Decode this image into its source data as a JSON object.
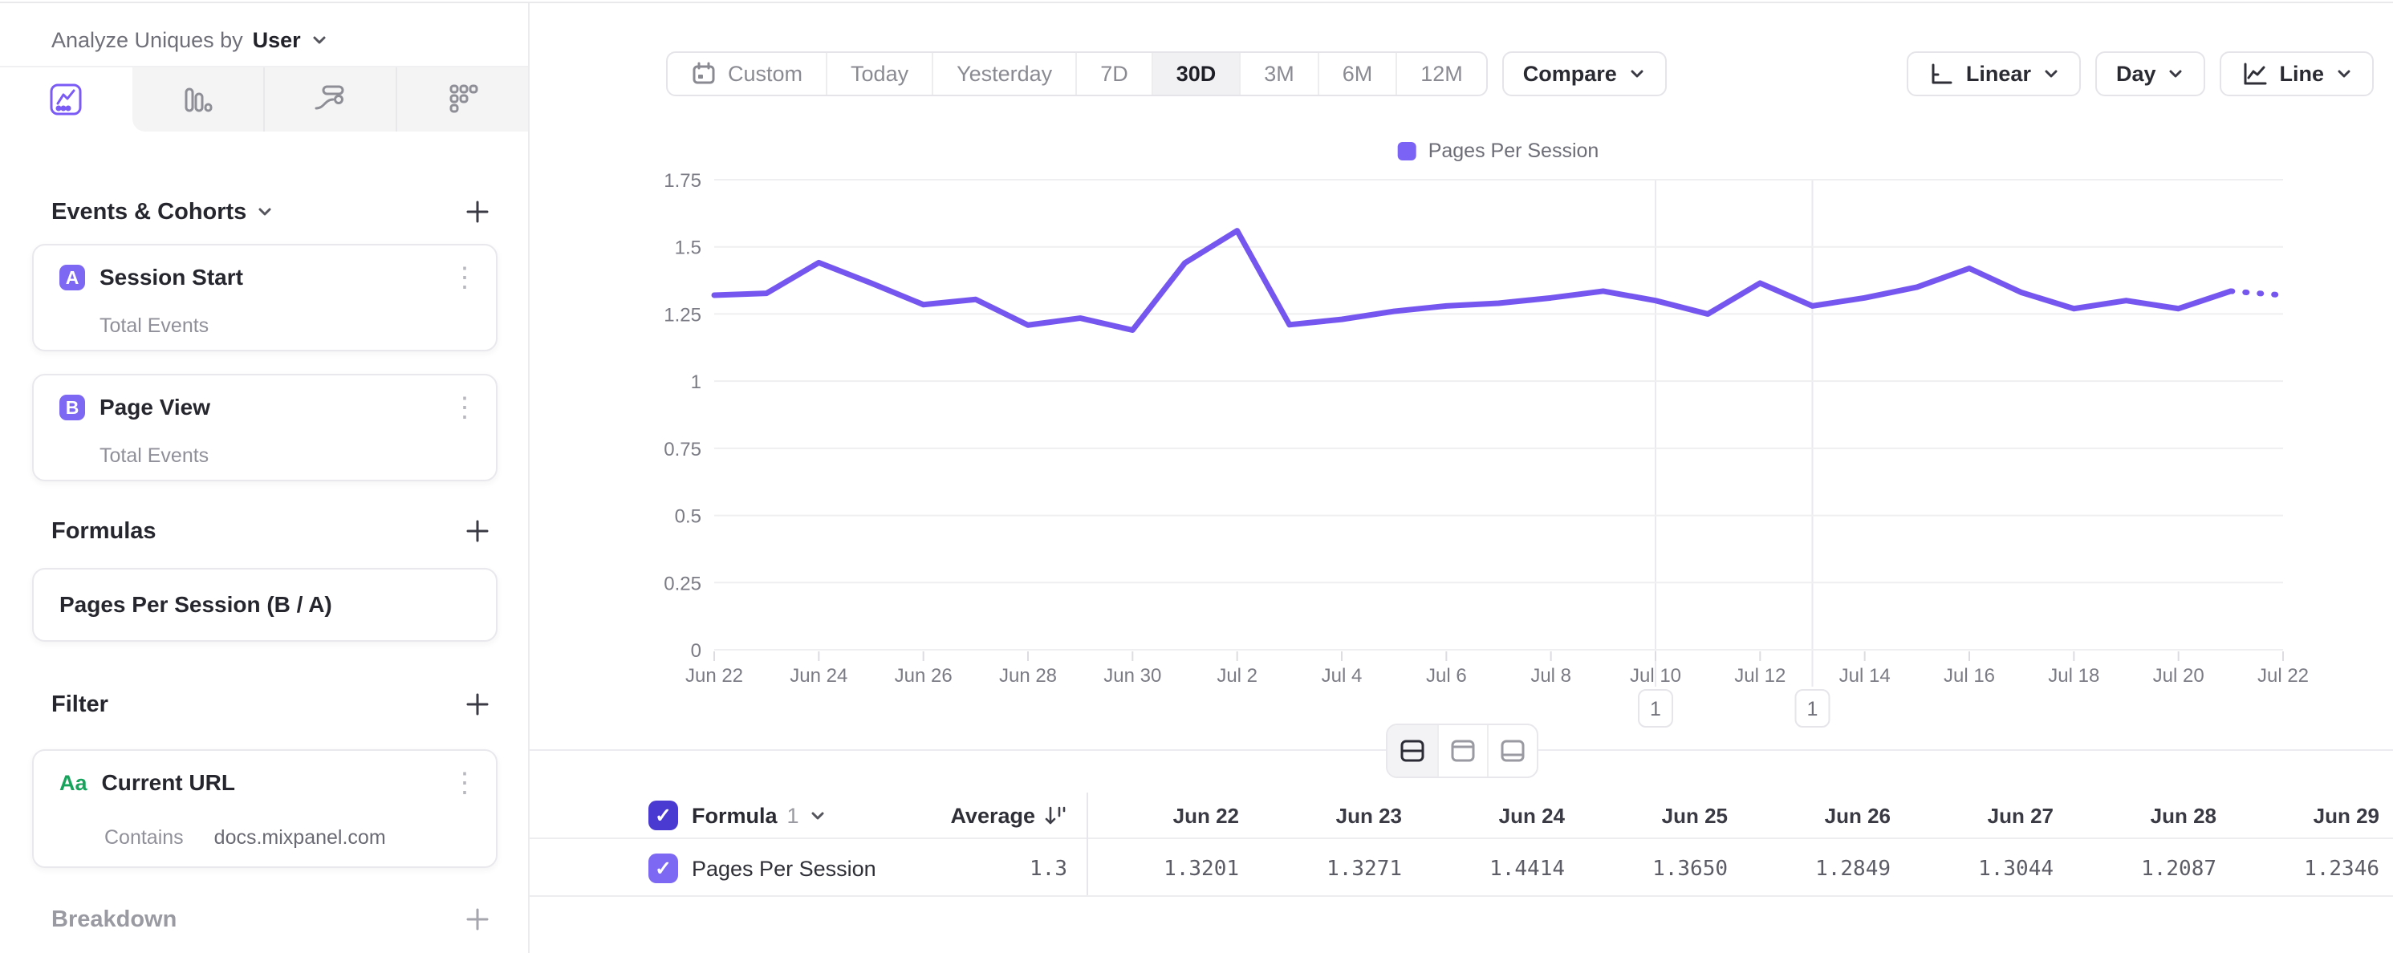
{
  "colors": {
    "accent_purple": "#7b5bf5",
    "line_purple": "#7557f0",
    "legend_swatch": "#7b63f5",
    "header_checkbox": "#4b3ad2",
    "row_checkbox": "#7c68f2",
    "filter_green": "#18a35d"
  },
  "sidebar": {
    "analyze_label": "Analyze Uniques by",
    "analyze_value": "User",
    "tabs": [
      "insights",
      "bar",
      "flow",
      "retention"
    ],
    "events_section": {
      "title": "Events & Cohorts",
      "items": [
        {
          "badge": "A",
          "title": "Session Start",
          "subtitle": "Total Events"
        },
        {
          "badge": "B",
          "title": "Page View",
          "subtitle": "Total Events"
        }
      ]
    },
    "formulas_section": {
      "title": "Formulas",
      "items": [
        {
          "title": "Pages Per Session (B / A)"
        }
      ]
    },
    "filter_section": {
      "title": "Filter",
      "items": [
        {
          "icon_label": "Aa",
          "title": "Current URL",
          "operator": "Contains",
          "value": "docs.mixpanel.com"
        }
      ]
    },
    "breakdown_section": {
      "title": "Breakdown"
    }
  },
  "toolbar": {
    "ranges": [
      "Custom",
      "Today",
      "Yesterday",
      "7D",
      "30D",
      "3M",
      "6M",
      "12M"
    ],
    "active_range": "30D",
    "compare_label": "Compare",
    "scale_label": "Linear",
    "interval_label": "Day",
    "chart_type_label": "Line"
  },
  "legend": {
    "label": "Pages Per Session"
  },
  "annotations": [
    {
      "label": "1",
      "x_index": 18
    },
    {
      "label": "1",
      "x_index": 21
    }
  ],
  "chart_data": {
    "type": "line",
    "title": "Pages Per Session over time",
    "x": [
      "Jun 22",
      "Jun 23",
      "Jun 24",
      "Jun 25",
      "Jun 26",
      "Jun 27",
      "Jun 28",
      "Jun 29",
      "Jun 30",
      "Jul 1",
      "Jul 2",
      "Jul 3",
      "Jul 4",
      "Jul 5",
      "Jul 6",
      "Jul 7",
      "Jul 8",
      "Jul 9",
      "Jul 10",
      "Jul 11",
      "Jul 12",
      "Jul 13",
      "Jul 14",
      "Jul 15",
      "Jul 16",
      "Jul 17",
      "Jul 18",
      "Jul 19",
      "Jul 20",
      "Jul 21",
      "Jul 22"
    ],
    "x_tick_every": 2,
    "ylim": [
      0,
      1.75
    ],
    "y_tick_step": 0.25,
    "grid": "horizontal",
    "legend_position": "top-center",
    "series": [
      {
        "name": "Pages Per Session",
        "color": "#7557f0",
        "dashed_last_segment": true,
        "values": [
          1.3201,
          1.3271,
          1.4414,
          1.365,
          1.2849,
          1.3044,
          1.2087,
          1.2346,
          1.19,
          1.44,
          1.56,
          1.21,
          1.23,
          1.26,
          1.28,
          1.29,
          1.31,
          1.335,
          1.3,
          1.25,
          1.365,
          1.28,
          1.31,
          1.35,
          1.42,
          1.33,
          1.27,
          1.3,
          1.27,
          1.335,
          1.32
        ]
      }
    ]
  },
  "table": {
    "header": {
      "formula_label": "Formula",
      "formula_number": "1",
      "average_label": "Average",
      "date_columns": [
        "Jun 22",
        "Jun 23",
        "Jun 24",
        "Jun 25",
        "Jun 26",
        "Jun 27",
        "Jun 28",
        "Jun 29"
      ]
    },
    "rows": [
      {
        "name": "Pages Per Session",
        "average": "1.3",
        "values": [
          "1.3201",
          "1.3271",
          "1.4414",
          "1.3650",
          "1.2849",
          "1.3044",
          "1.2087",
          "1.2346"
        ]
      }
    ]
  },
  "check_glyph": "✓",
  "kebab_glyph": "⋮"
}
